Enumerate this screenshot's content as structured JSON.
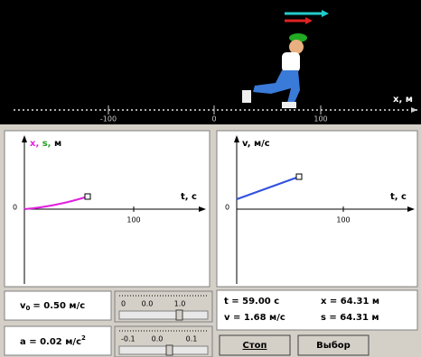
{
  "scene": {
    "axis_label": "x, м",
    "ticks": [
      "-100",
      "0",
      "100"
    ]
  },
  "graph_left": {
    "label_x": "x,",
    "label_s": "s,",
    "label_unit": "м",
    "t_label": "t, c",
    "zero": "0",
    "tick": "100"
  },
  "graph_right": {
    "y_label": "v, м/с",
    "t_label": "t, c",
    "zero": "0",
    "tick": "100"
  },
  "controls": {
    "v0": {
      "symbol": "v",
      "sub": "0",
      "text": "= 0.50 м/с",
      "scale": [
        "0",
        "0.0",
        "1.0"
      ]
    },
    "a": {
      "text": "a = 0.02 м/с",
      "sup": "2",
      "scale": [
        "-0.1",
        "0.0",
        "0.1"
      ]
    }
  },
  "readout": {
    "t": "t = 59.00 c",
    "x": "x = 64.31 м",
    "v": "v = 1.68 м/с",
    "s": "s = 64.31 м"
  },
  "buttons": {
    "stop": "Стоп",
    "select": "Выбор"
  }
}
